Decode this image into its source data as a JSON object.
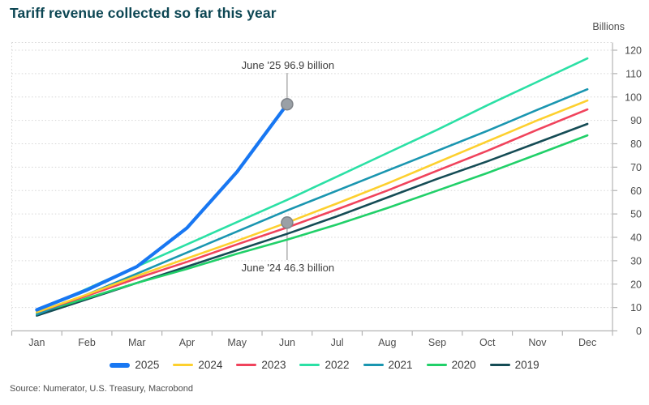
{
  "title": "Tariff revenue collected so far this year",
  "unit_label": "Billions",
  "source": "Source: Numerator, U.S. Treasury, Macrobond",
  "colors": {
    "title": "#0c4653",
    "axis_text": "#4d4d4d",
    "axis_line": "#b3b3b3",
    "grid": "#d6d6d6",
    "marker_fill": "#9aa0a6",
    "marker_stroke": "#7f8389",
    "leader_line": "#9b9b9b",
    "annotation_text": "#3c3c3c"
  },
  "chart_data": {
    "type": "line",
    "categories": [
      "Jan",
      "Feb",
      "Mar",
      "Apr",
      "May",
      "Jun",
      "Jul",
      "Aug",
      "Sep",
      "Oct",
      "Nov",
      "Dec"
    ],
    "title": "Tariff revenue collected so far this year",
    "xlabel": "",
    "ylabel": "Billions",
    "ylim": [
      0,
      120
    ],
    "ytick_step": 10,
    "grid": "horizontal-dotted",
    "legend_position": "bottom",
    "series": [
      {
        "name": "2025",
        "color": "#1877f2",
        "line_width": 4.2,
        "values": [
          9.0,
          17.5,
          27.5,
          44.0,
          68.0,
          96.9
        ]
      },
      {
        "name": "2024",
        "color": "#fdd02e",
        "line_width": 2.6,
        "values": [
          8.0,
          15.5,
          23.5,
          31.0,
          38.5,
          46.3,
          54.5,
          63.0,
          72.0,
          81.0,
          90.0,
          98.5
        ]
      },
      {
        "name": "2023",
        "color": "#f0435c",
        "line_width": 2.6,
        "values": [
          8.0,
          15.0,
          22.5,
          29.5,
          37.0,
          44.2,
          52.0,
          60.0,
          68.5,
          77.0,
          86.0,
          94.7
        ]
      },
      {
        "name": "2022",
        "color": "#2be0a5",
        "line_width": 2.6,
        "values": [
          8.5,
          18.0,
          27.5,
          37.0,
          46.5,
          56.0,
          66.0,
          76.0,
          86.0,
          96.5,
          106.5,
          116.5
        ]
      },
      {
        "name": "2021",
        "color": "#1a96b0",
        "line_width": 2.6,
        "values": [
          7.0,
          15.5,
          24.5,
          33.5,
          42.5,
          51.5,
          60.0,
          68.5,
          77.0,
          85.5,
          94.5,
          103.3
        ]
      },
      {
        "name": "2020",
        "color": "#21d069",
        "line_width": 2.6,
        "values": [
          7.5,
          14.0,
          20.5,
          26.5,
          33.0,
          39.0,
          45.5,
          52.5,
          60.0,
          67.5,
          75.5,
          83.6
        ]
      },
      {
        "name": "2019",
        "color": "#154c55",
        "line_width": 2.6,
        "values": [
          6.5,
          13.5,
          20.5,
          27.5,
          34.5,
          41.5,
          49.0,
          57.0,
          65.0,
          72.5,
          80.5,
          88.5
        ]
      }
    ],
    "annotations": [
      {
        "text": "June '25 96.9 billion",
        "series": "2025",
        "month_index": 5,
        "value": 96.9,
        "label_position": "above"
      },
      {
        "text": "June '24 46.3 billion",
        "series": "2024",
        "month_index": 5,
        "value": 46.3,
        "label_position": "below"
      }
    ]
  }
}
